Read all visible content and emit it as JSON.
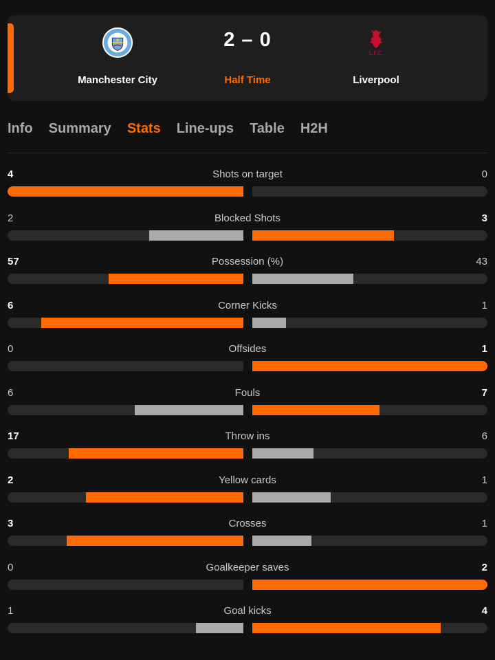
{
  "match": {
    "home_team": "Manchester City",
    "away_team": "Liverpool",
    "score": "2 – 0",
    "status": "Half Time",
    "home_logo_icon": "manchester-city-crest-icon",
    "away_logo_icon": "liverpool-crest-icon"
  },
  "tabs": [
    "Info",
    "Summary",
    "Stats",
    "Line-ups",
    "Table",
    "H2H"
  ],
  "active_tab": "Stats",
  "colors": {
    "accent": "#ff6b00",
    "background": "#111111",
    "card": "#1e1e1f",
    "bar_track": "#2a2a2a",
    "bar_secondary": "#aaaaaa",
    "liverpool_red": "#c8102e",
    "city_blue": "#6cabdd"
  },
  "stats": [
    {
      "label": "Shots on target",
      "home": "4",
      "away": "0"
    },
    {
      "label": "Blocked Shots",
      "home": "2",
      "away": "3"
    },
    {
      "label": "Possession (%)",
      "home": "57",
      "away": "43"
    },
    {
      "label": "Corner Kicks",
      "home": "6",
      "away": "1"
    },
    {
      "label": "Offsides",
      "home": "0",
      "away": "1"
    },
    {
      "label": "Fouls",
      "home": "6",
      "away": "7"
    },
    {
      "label": "Throw ins",
      "home": "17",
      "away": "6"
    },
    {
      "label": "Yellow cards",
      "home": "2",
      "away": "1"
    },
    {
      "label": "Crosses",
      "home": "3",
      "away": "1"
    },
    {
      "label": "Goalkeeper saves",
      "home": "0",
      "away": "2"
    },
    {
      "label": "Goal kicks",
      "home": "1",
      "away": "4"
    }
  ]
}
